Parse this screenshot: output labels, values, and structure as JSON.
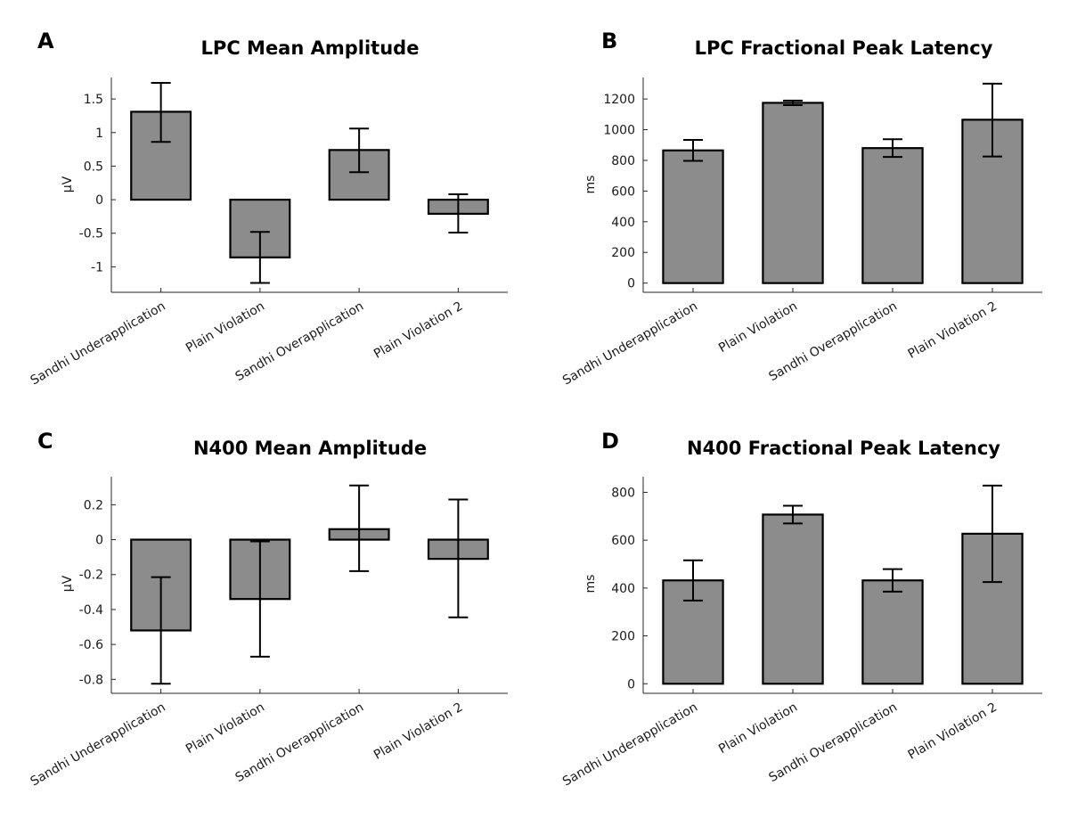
{
  "chart_data": [
    {
      "panel": "A",
      "type": "bar",
      "title": "LPC Mean Amplitude",
      "ylabel": "μV",
      "categories": [
        "Sandhi Underapplication",
        "Plain Violation",
        "Sandhi Overapplication",
        "Plain Violation 2"
      ],
      "values": [
        1.31,
        -0.86,
        0.74,
        -0.21
      ],
      "error_low": [
        0.86,
        -1.24,
        0.41,
        -0.49
      ],
      "error_high": [
        1.74,
        -0.48,
        1.06,
        0.08
      ],
      "ylim": [
        -1.38,
        1.82
      ],
      "yticks": [
        -1,
        -0.5,
        0,
        0.5,
        1,
        1.5
      ],
      "ytick_labels": [
        "-1",
        "-0.5",
        "0",
        "0.5",
        "1",
        "1.5"
      ],
      "bar_color": "#8c8c8c",
      "grid": false
    },
    {
      "panel": "B",
      "type": "bar",
      "title": "LPC Fractional Peak Latency",
      "ylabel": "ms",
      "categories": [
        "Sandhi Underapplication",
        "Plain Violation",
        "Sandhi Overapplication",
        "Plain Violation 2"
      ],
      "values": [
        865,
        1175,
        880,
        1065
      ],
      "error_low": [
        797,
        1160,
        822,
        825
      ],
      "error_high": [
        933,
        1190,
        938,
        1300
      ],
      "ylim": [
        -60,
        1340
      ],
      "yticks": [
        0,
        200,
        400,
        600,
        800,
        1000,
        1200
      ],
      "ytick_labels": [
        "0",
        "200",
        "400",
        "600",
        "800",
        "1000",
        "1200"
      ],
      "bar_color": "#8c8c8c",
      "grid": false
    },
    {
      "panel": "C",
      "type": "bar",
      "title": "N400 Mean Amplitude",
      "ylabel": "μV",
      "categories": [
        "Sandhi Underapplication",
        "Plain Violation",
        "Sandhi Overapplication",
        "Plain Violation 2"
      ],
      "values": [
        -0.52,
        -0.34,
        0.06,
        -0.11
      ],
      "error_low": [
        -0.825,
        -0.67,
        -0.18,
        -0.445
      ],
      "error_high": [
        -0.215,
        -0.01,
        0.31,
        0.23
      ],
      "ylim": [
        -0.88,
        0.36
      ],
      "yticks": [
        -0.8,
        -0.6,
        -0.4,
        -0.2,
        0,
        0.2
      ],
      "ytick_labels": [
        "-0.8",
        "-0.6",
        "-0.4",
        "-0.2",
        "0",
        "0.2"
      ],
      "bar_color": "#8c8c8c",
      "grid": false
    },
    {
      "panel": "D",
      "type": "bar",
      "title": "N400 Fractional Peak Latency",
      "ylabel": "ms",
      "categories": [
        "Sandhi Underapplication",
        "Plain Violation",
        "Sandhi Overapplication",
        "Plain Violation 2"
      ],
      "values": [
        432,
        707,
        432,
        627
      ],
      "error_low": [
        348,
        670,
        385,
        425
      ],
      "error_high": [
        516,
        744,
        479,
        828
      ],
      "ylim": [
        -40,
        865
      ],
      "yticks": [
        0,
        200,
        400,
        600,
        800
      ],
      "ytick_labels": [
        "0",
        "200",
        "400",
        "600",
        "800"
      ],
      "bar_color": "#8c8c8c",
      "grid": false
    }
  ]
}
